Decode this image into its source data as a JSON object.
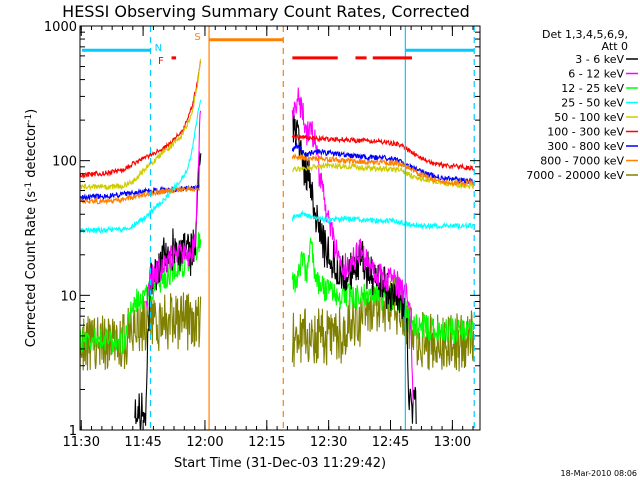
{
  "chart_data": {
    "type": "line",
    "title": "HESSI Observing Summary Count Rates, Corrected",
    "xlabel": "Start Time (31-Dec-03 11:29:42)",
    "ylabel": "Corrected Count Rate (s⁻¹ detector⁻¹)",
    "ylabel_parts": [
      "Corrected Count Rate (s",
      "-1",
      " detector",
      "-1",
      ")"
    ],
    "footer": "18-Mar-2010 08:06",
    "x_unit": "minutes since 11:29:42",
    "xlim": [
      0,
      97
    ],
    "ylim": [
      1,
      1000
    ],
    "yscale": "log",
    "x_ticks": [
      {
        "value": 0.3,
        "label": "11:30"
      },
      {
        "value": 15.3,
        "label": "11:45"
      },
      {
        "value": 30.3,
        "label": "12:00"
      },
      {
        "value": 45.3,
        "label": "12:15"
      },
      {
        "value": 60.3,
        "label": "12:30"
      },
      {
        "value": 75.3,
        "label": "12:45"
      },
      {
        "value": 90.3,
        "label": "13:00"
      }
    ],
    "y_ticks": [
      {
        "value": 1,
        "label": "1"
      },
      {
        "value": 10,
        "label": "10"
      },
      {
        "value": 100,
        "label": "100"
      },
      {
        "value": 1000,
        "label": "1000"
      }
    ],
    "legend": {
      "placement": "right",
      "header": [
        "Det 1,3,4,5,6,9,",
        "Att 0"
      ],
      "entries": [
        {
          "label": "3 - 6 keV",
          "color": "#000000"
        },
        {
          "label": "6 - 12 keV",
          "color": "#ff00ff"
        },
        {
          "label": "12 - 25 keV",
          "color": "#00ff00"
        },
        {
          "label": "25 - 50 keV",
          "color": "#00ffff"
        },
        {
          "label": "50 - 100 keV",
          "color": "#cccc00"
        },
        {
          "label": "100 - 300 keV",
          "color": "#ff0000"
        },
        {
          "label": "300 - 800 keV",
          "color": "#0000ff"
        },
        {
          "label": "800 - 7000 keV",
          "color": "#ff8000"
        },
        {
          "label": "7000 - 20000 keV",
          "color": "#808000"
        }
      ]
    },
    "series": [
      {
        "color": "#808000",
        "noise": 0.22,
        "seed": 9,
        "segments": [
          [
            [
              0,
              4.5
            ],
            [
              4,
              4.5
            ],
            [
              11,
              4.6
            ],
            [
              12,
              5.6
            ],
            [
              14,
              6.3
            ],
            [
              29.3,
              6.5
            ]
          ],
          [
            [
              51.5,
              4.8
            ],
            [
              60,
              4.9
            ],
            [
              64,
              5.2
            ],
            [
              67,
              6.6
            ],
            [
              70,
              7.5
            ],
            [
              74,
              8.6
            ],
            [
              76,
              8.6
            ],
            [
              78.5,
              7.6
            ],
            [
              79.5,
              5.2
            ],
            [
              82,
              4.6
            ],
            [
              92,
              4.5
            ],
            [
              95.5,
              4.7
            ]
          ]
        ]
      },
      {
        "color": "#00ff00",
        "noise": 0.1,
        "seed": 3,
        "segments": [
          [
            [
              0,
              4.6
            ],
            [
              11,
              4.6
            ],
            [
              12,
              7.5
            ],
            [
              14,
              9.2
            ],
            [
              17,
              10.5
            ],
            [
              20,
              13
            ],
            [
              23,
              16
            ],
            [
              26,
              17.5
            ],
            [
              28,
              21
            ],
            [
              29.3,
              28
            ]
          ],
          [
            [
              51.5,
              12
            ],
            [
              53,
              14
            ],
            [
              54,
              20
            ],
            [
              55,
              14
            ],
            [
              56,
              24
            ],
            [
              57,
              15
            ],
            [
              58,
              12
            ],
            [
              60,
              10.5
            ],
            [
              63,
              9.6
            ],
            [
              68,
              10
            ],
            [
              72,
              9.6
            ],
            [
              76,
              9.4
            ],
            [
              78,
              9.3
            ],
            [
              79,
              7.4
            ],
            [
              80,
              6
            ],
            [
              86,
              5.6
            ],
            [
              95.5,
              5.4
            ]
          ]
        ]
      },
      {
        "color": "#000000",
        "noise": 0.16,
        "seed": 1,
        "segments": [
          [
            [
              13.3,
              1.4
            ],
            [
              16,
              1.5
            ],
            [
              17,
              13.5
            ],
            [
              19,
              16.5
            ],
            [
              21,
              20
            ],
            [
              23,
              23
            ],
            [
              25,
              21
            ],
            [
              27,
              20
            ],
            [
              28,
              26
            ],
            [
              29.3,
              150
            ]
          ],
          [
            [
              51.5,
              180
            ],
            [
              52,
              200
            ],
            [
              53,
              150
            ],
            [
              54,
              100
            ],
            [
              56,
              70
            ],
            [
              58,
              30
            ],
            [
              60,
              20
            ],
            [
              62,
              17
            ],
            [
              64,
              15
            ],
            [
              66,
              15
            ],
            [
              68,
              19
            ],
            [
              70,
              15
            ],
            [
              72,
              12
            ],
            [
              75,
              11
            ],
            [
              78,
              10
            ],
            [
              79.3,
              6
            ],
            [
              79.8,
              1.5
            ],
            [
              81.6,
              1.5
            ]
          ]
        ]
      },
      {
        "color": "#ff00ff",
        "noise": 0.1,
        "seed": 2,
        "segments": [
          [
            [
              16,
              8.5
            ],
            [
              17,
              13
            ],
            [
              19,
              15
            ],
            [
              21,
              18
            ],
            [
              23,
              21
            ],
            [
              25,
              20
            ],
            [
              27,
              19
            ],
            [
              28,
              30
            ],
            [
              29.3,
              260
            ]
          ],
          [
            [
              51.5,
              210
            ],
            [
              52,
              260
            ],
            [
              53,
              280
            ],
            [
              54,
              230
            ],
            [
              55,
              160
            ],
            [
              56,
              170
            ],
            [
              57,
              140
            ],
            [
              58,
              80
            ],
            [
              60,
              40
            ],
            [
              62,
              22
            ],
            [
              64,
              16
            ],
            [
              66,
              18
            ],
            [
              68,
              21
            ],
            [
              70,
              17
            ],
            [
              72,
              14
            ],
            [
              75,
              13
            ],
            [
              77,
              12
            ],
            [
              79,
              10
            ],
            [
              80,
              8
            ],
            [
              81,
              1.3
            ]
          ]
        ]
      },
      {
        "color": "#ff0000",
        "noise": 0.018,
        "seed": 6,
        "segments": [
          [
            [
              0,
              78
            ],
            [
              5,
              80
            ],
            [
              10,
              84
            ],
            [
              13,
              95
            ],
            [
              16,
              107
            ],
            [
              19,
              117
            ],
            [
              22,
              135
            ],
            [
              25,
              170
            ],
            [
              27,
              240
            ],
            [
              28.5,
              380
            ],
            [
              29.3,
              560
            ]
          ],
          [
            [
              51.5,
              150
            ],
            [
              55,
              148
            ],
            [
              60,
              145
            ],
            [
              64,
              143
            ],
            [
              70,
              140
            ],
            [
              74,
              137
            ],
            [
              76,
              134
            ],
            [
              78,
              131
            ],
            [
              80,
              118
            ],
            [
              84,
              100
            ],
            [
              88,
              92
            ],
            [
              95.5,
              88
            ]
          ]
        ]
      },
      {
        "color": "#0000ff",
        "noise": 0.02,
        "seed": 7,
        "segments": [
          [
            [
              0,
              53
            ],
            [
              5,
              54
            ],
            [
              10,
              56
            ],
            [
              14,
              58
            ],
            [
              18,
              60
            ],
            [
              22,
              61
            ],
            [
              26,
              62
            ],
            [
              29,
              64
            ]
          ],
          [
            [
              51.5,
              120
            ],
            [
              53,
              130
            ],
            [
              55,
              110
            ],
            [
              57,
              118
            ],
            [
              60,
              114
            ],
            [
              65,
              110
            ],
            [
              70,
              106
            ],
            [
              75,
              104
            ],
            [
              78,
              100
            ],
            [
              80,
              90
            ],
            [
              84,
              80
            ],
            [
              88,
              74
            ],
            [
              95.5,
              70
            ]
          ]
        ]
      },
      {
        "color": "#cccc00",
        "noise": 0.02,
        "seed": 5,
        "segments": [
          [
            [
              0,
              64
            ],
            [
              5,
              64
            ],
            [
              10,
              64.5
            ],
            [
              13,
              70
            ],
            [
              16,
              88
            ],
            [
              19,
              107
            ],
            [
              22,
              128
            ],
            [
              25,
              160
            ],
            [
              27,
              220
            ],
            [
              28.5,
              360
            ],
            [
              29.3,
              600
            ]
          ],
          [
            [
              51.5,
              85
            ],
            [
              55,
              88
            ],
            [
              60,
              92
            ],
            [
              65,
              90
            ],
            [
              70,
              88
            ],
            [
              75,
              87
            ],
            [
              78,
              85
            ],
            [
              80,
              78
            ],
            [
              84,
              72
            ],
            [
              88,
              68
            ],
            [
              95.5,
              64
            ]
          ]
        ]
      },
      {
        "color": "#00ffff",
        "noise": 0.02,
        "seed": 4,
        "segments": [
          [
            [
              0,
              30
            ],
            [
              10,
              31
            ],
            [
              12,
              31.5
            ],
            [
              14,
              35
            ],
            [
              16,
              38
            ],
            [
              18,
              44
            ],
            [
              20,
              50
            ],
            [
              22,
              58
            ],
            [
              24,
              70
            ],
            [
              26,
              85
            ],
            [
              27,
              110
            ],
            [
              28,
              170
            ],
            [
              29.3,
              300
            ]
          ],
          [
            [
              51.5,
              37
            ],
            [
              54,
              40
            ],
            [
              56,
              38
            ],
            [
              60,
              36
            ],
            [
              65,
              37
            ],
            [
              70,
              36
            ],
            [
              75,
              35.5
            ],
            [
              78,
              35
            ],
            [
              80,
              33.5
            ],
            [
              86,
              32.5
            ],
            [
              95.5,
              33
            ]
          ]
        ]
      },
      {
        "color": "#ff8000",
        "noise": 0.02,
        "seed": 8,
        "segments": [
          [
            [
              0,
              50
            ],
            [
              5,
              50
            ],
            [
              10,
              51
            ],
            [
              14,
              55
            ],
            [
              18,
              58
            ],
            [
              22,
              60
            ],
            [
              26,
              61
            ],
            [
              29,
              62
            ]
          ],
          [
            [
              51.5,
              108
            ],
            [
              55,
              104
            ],
            [
              60,
              102
            ],
            [
              65,
              100
            ],
            [
              70,
              98
            ],
            [
              74,
              97
            ],
            [
              77,
              95
            ],
            [
              79,
              92
            ],
            [
              82,
              80
            ],
            [
              86,
              72
            ],
            [
              90,
              68
            ],
            [
              95.5,
              68
            ]
          ]
        ]
      }
    ],
    "vlines": [
      {
        "x": 17.1,
        "color": "#00ccff",
        "dash": true
      },
      {
        "x": 31.3,
        "color": "#ff8000",
        "dash": false
      },
      {
        "x": 49.3,
        "color": "#ff8000",
        "dash": true
      },
      {
        "x": 78.9,
        "color": "#00ccff",
        "dash": false
      },
      {
        "x": 95.6,
        "color": "#00ccff",
        "dash": true
      }
    ],
    "flag_bars": [
      {
        "color": "#00ccff",
        "y": 660,
        "x0": 0.5,
        "x1": 17.1
      },
      {
        "color": "#00ccff",
        "y": 660,
        "x0": 78.9,
        "x1": 95.6
      },
      {
        "color": "#ff8000",
        "y": 790,
        "x0": 31.3,
        "x1": 49.3
      },
      {
        "color": "#ff0000",
        "y": 580,
        "x0": 51.5,
        "x1": 62.5
      },
      {
        "color": "#ff0000",
        "y": 580,
        "x0": 66.8,
        "x1": 69.5
      },
      {
        "color": "#ff0000",
        "y": 580,
        "x0": 71.0,
        "x1": 80.5
      },
      {
        "color": "#ff0000",
        "y": 580,
        "x0": 22.2,
        "x1": 23.3
      }
    ],
    "flag_labels": [
      {
        "text": "N",
        "color": "#00ccff",
        "x": 19.0,
        "y": 700
      },
      {
        "text": "F",
        "color": "#ff0000",
        "x": 19.6,
        "y": 560
      },
      {
        "text": "S",
        "color": "#ff8000",
        "x": 28.5,
        "y": 840
      }
    ]
  }
}
